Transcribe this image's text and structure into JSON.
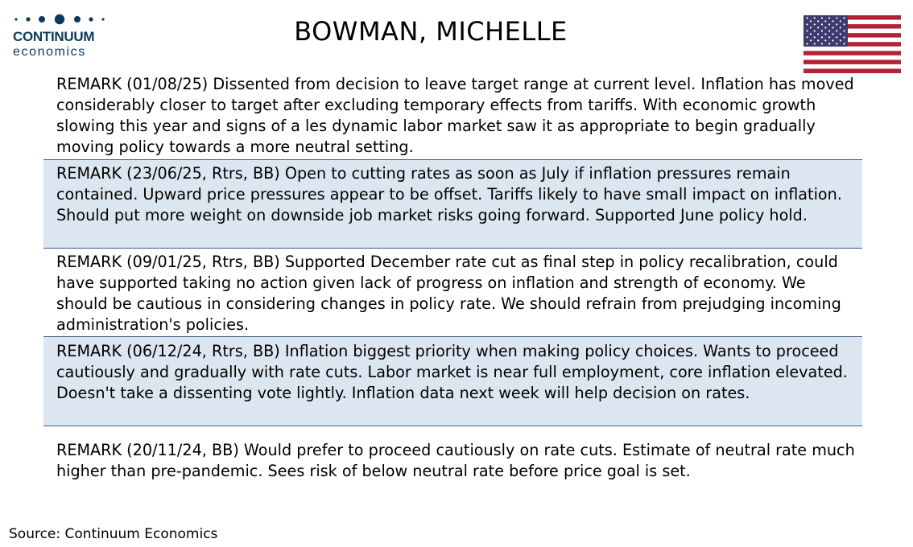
{
  "logo": {
    "name": "CONTINUUM",
    "subtitle": "economics",
    "color": "#0d3a5c"
  },
  "header": {
    "title": "BOWMAN, MICHELLE",
    "flag_icon": "us-flag-icon"
  },
  "colors": {
    "shaded_row": "#dce6f1",
    "divider": "#3d5f8c",
    "flag_red": "#b22234",
    "flag_blue": "#3c3b6e"
  },
  "remarks": [
    {
      "text": "REMARK (01/08/25) Dissented from decision to leave target range at current level. Inflation has moved considerably closer to target after excluding temporary effects from tariffs. With economic growth slowing this year and signs of a les dynamic labor market saw it as appropriate to begin gradually moving policy towards a more neutral setting."
    },
    {
      "text": "REMARK (23/06/25, Rtrs, BB) Open to cutting rates as soon as July if inflation pressures remain contained. Upward price pressures appear to be offset. Tariffs likely to have small impact on inflation. Should put more weight on downside job market risks going forward. Supported June policy hold."
    },
    {
      "text": "REMARK (09/01/25, Rtrs, BB) Supported December rate cut as final step in policy recalibration, could have supported taking no action given lack of progress on inflation and strength of economy. We should be cautious in considering changes in policy rate. We should refrain from prejudging incoming administration's policies."
    },
    {
      "text": "REMARK (06/12/24, Rtrs, BB) Inflation biggest priority when making policy choices. Wants to proceed cautiously and gradually with rate cuts. Labor market is near full employment, core inflation elevated. Doesn't take a dissenting vote lightly. Inflation data next week will help decision on rates."
    },
    {
      "text": "REMARK (20/11/24, BB) Would prefer to proceed cautiously on rate cuts. Estimate of neutral rate much higher than pre-pandemic. Sees risk of below neutral rate before price goal is set."
    }
  ],
  "footer": {
    "source": "Source: Continuum Economics"
  }
}
